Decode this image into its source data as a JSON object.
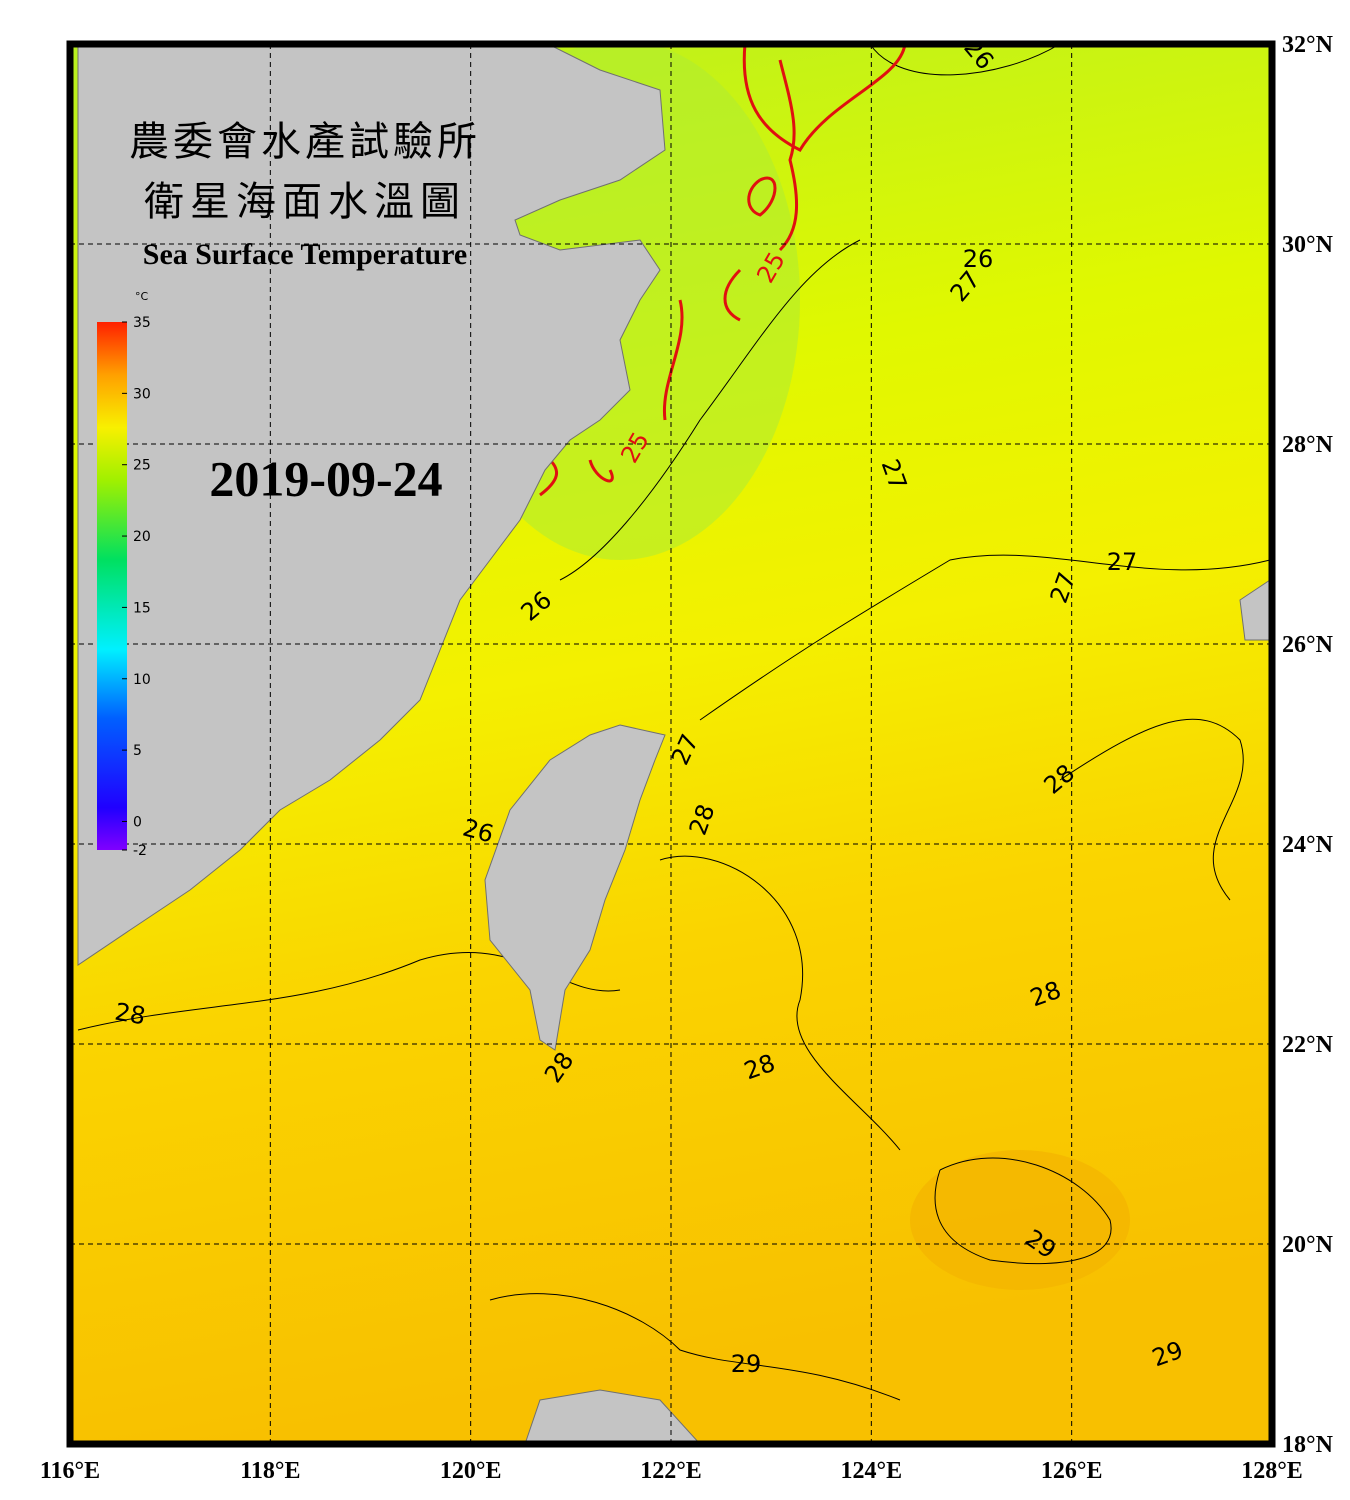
{
  "header": {
    "title_lines": [
      "農委會水產試驗所",
      "衛星海面水溫圖"
    ],
    "subtitle": "Sea Surface Temperature",
    "date": "2019-09-24"
  },
  "colorbar": {
    "unit": "°C",
    "range": [
      -2,
      35
    ],
    "ticks": [
      35,
      30,
      25,
      20,
      15,
      10,
      5,
      0,
      -2
    ]
  },
  "map": {
    "lon_range": [
      116,
      128
    ],
    "lat_range": [
      18,
      32
    ],
    "lon_ticks": [
      {
        "value": 116,
        "label": "116°E"
      },
      {
        "value": 118,
        "label": "118°E"
      },
      {
        "value": 120,
        "label": "120°E"
      },
      {
        "value": 122,
        "label": "122°E"
      },
      {
        "value": 124,
        "label": "124°E"
      },
      {
        "value": 126,
        "label": "126°E"
      },
      {
        "value": 128,
        "label": "128°E"
      }
    ],
    "lat_ticks": [
      {
        "value": 32,
        "label": "32°N"
      },
      {
        "value": 30,
        "label": "30°N"
      },
      {
        "value": 28,
        "label": "28°N"
      },
      {
        "value": 26,
        "label": "26°N"
      },
      {
        "value": 24,
        "label": "24°N"
      },
      {
        "value": 22,
        "label": "22°N"
      },
      {
        "value": 20,
        "label": "20°N"
      },
      {
        "value": 18,
        "label": "18°N"
      }
    ],
    "contour_labels": [
      26,
      25,
      26,
      27,
      25,
      27,
      27,
      27,
      26,
      27,
      28,
      28,
      26,
      28,
      28,
      28,
      28,
      29,
      29,
      29
    ]
  }
}
